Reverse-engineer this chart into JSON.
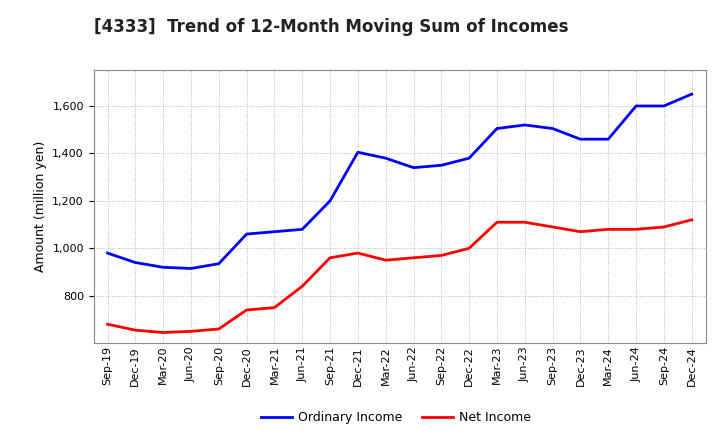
{
  "title": "[4333]  Trend of 12-Month Moving Sum of Incomes",
  "ylabel": "Amount (million yen)",
  "x_labels": [
    "Sep-19",
    "Dec-19",
    "Mar-20",
    "Jun-20",
    "Sep-20",
    "Dec-20",
    "Mar-21",
    "Jun-21",
    "Sep-21",
    "Dec-21",
    "Mar-22",
    "Jun-22",
    "Sep-22",
    "Dec-22",
    "Mar-23",
    "Jun-23",
    "Sep-23",
    "Dec-23",
    "Mar-24",
    "Jun-24",
    "Sep-24",
    "Dec-24"
  ],
  "ordinary_income": [
    980,
    940,
    920,
    915,
    935,
    1060,
    1070,
    1080,
    1200,
    1405,
    1380,
    1340,
    1350,
    1380,
    1505,
    1520,
    1505,
    1460,
    1460,
    1600,
    1600,
    1650
  ],
  "net_income": [
    680,
    655,
    645,
    650,
    660,
    740,
    750,
    840,
    960,
    980,
    950,
    960,
    970,
    1000,
    1110,
    1110,
    1090,
    1070,
    1080,
    1080,
    1090,
    1120
  ],
  "ordinary_color": "#0000ff",
  "net_color": "#ff0000",
  "ylim": [
    600,
    1750
  ],
  "yticks": [
    800,
    1000,
    1200,
    1400,
    1600
  ],
  "background_color": "#ffffff",
  "grid_color": "#aaaaaa",
  "line_width": 2.0,
  "title_fontsize": 12,
  "tick_fontsize": 8,
  "ylabel_fontsize": 9,
  "legend_fontsize": 9
}
